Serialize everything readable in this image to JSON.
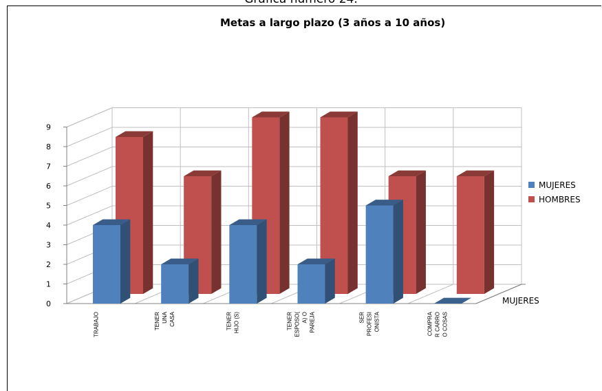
{
  "page": {
    "caption": "Grafica numero 24."
  },
  "chart_data": {
    "type": "bar",
    "title": "Metas a largo plazo (3 años a 10 años)",
    "categories": [
      [
        "TRABAJO"
      ],
      [
        "TENER",
        "UNA",
        "CASA"
      ],
      [
        "TENER",
        "HIJO (S)"
      ],
      [
        "TENER",
        "ESPOSO(",
        "A) O",
        "PAREJA"
      ],
      [
        "SER",
        "PROFESI",
        "ONISTA"
      ],
      [
        "COMPRA",
        "R CARRO",
        "O COSAS"
      ]
    ],
    "series": [
      {
        "name": "MUJERES",
        "values": [
          4,
          2,
          4,
          2,
          5,
          0
        ],
        "color": "#4F81BD"
      },
      {
        "name": "HOMBRES",
        "values": [
          8,
          6,
          9,
          9,
          6,
          6
        ],
        "color": "#C0504D"
      }
    ],
    "ylim": [
      0,
      9
    ],
    "yticks": [
      "0",
      "1",
      "2",
      "3",
      "4",
      "5",
      "6",
      "7",
      "8",
      "9"
    ],
    "depth_label": "MUJERES",
    "grid": true,
    "legend": "right"
  }
}
